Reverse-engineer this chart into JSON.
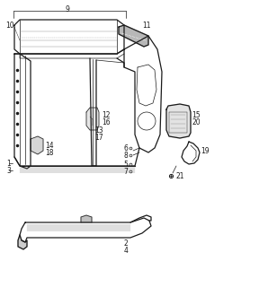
{
  "background_color": "#ffffff",
  "line_color": "#1a1a1a",
  "fig_width": 2.98,
  "fig_height": 3.2,
  "dpi": 100,
  "font_size": 5.5,
  "lw_main": 0.9,
  "lw_thin": 0.5,
  "lw_xtra": 0.3
}
